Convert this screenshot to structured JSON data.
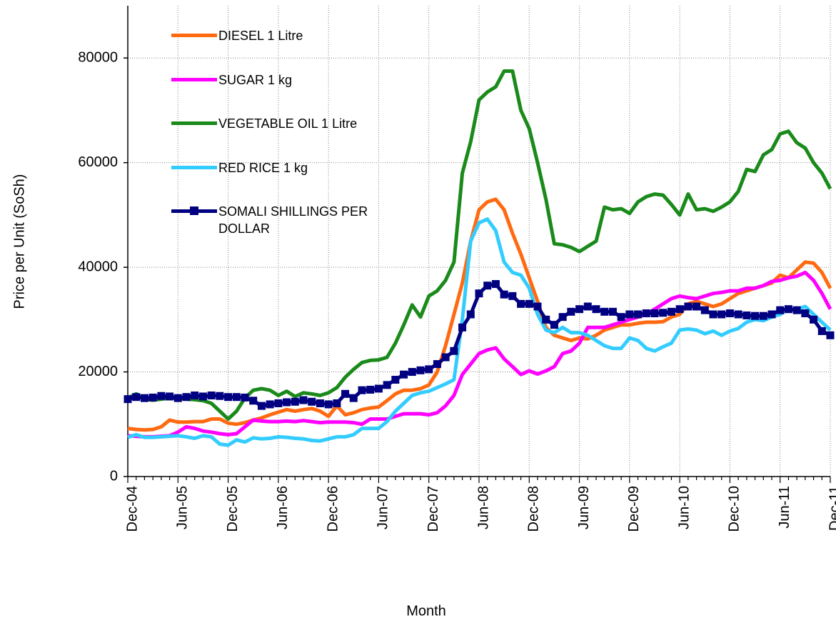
{
  "chart_data": {
    "type": "line",
    "y_label": "Price per Unit (SoSh)",
    "x_label": "Month",
    "categories": [
      "Dec-04",
      null,
      null,
      null,
      null,
      null,
      "Jun-05",
      null,
      null,
      null,
      null,
      null,
      "Dec-05",
      null,
      null,
      null,
      null,
      null,
      "Jun-06",
      null,
      null,
      null,
      null,
      null,
      "Dec-06",
      null,
      null,
      null,
      null,
      null,
      "Jun-07",
      null,
      null,
      null,
      null,
      null,
      "Dec-07",
      null,
      null,
      null,
      null,
      null,
      "Jun-08",
      null,
      null,
      null,
      null,
      null,
      "Dec-08",
      null,
      null,
      null,
      null,
      null,
      "Jun-09",
      null,
      null,
      null,
      null,
      null,
      "Dec-09",
      null,
      null,
      null,
      null,
      null,
      "Jun-10",
      null,
      null,
      null,
      null,
      null,
      "Dec-10",
      null,
      null,
      null,
      null,
      null,
      "Jun-11",
      null,
      null,
      null,
      null,
      null,
      "Dec-11"
    ],
    "ylim": [
      0,
      90000
    ],
    "yticks": [
      0,
      20000,
      40000,
      60000,
      80000
    ],
    "grid": true,
    "legend": "upper-left",
    "series": [
      {
        "name": "DIESEL 1 Litre",
        "color": "#ff6a10",
        "values": [
          9200,
          9000,
          8900,
          9000,
          9500,
          10800,
          10400,
          10400,
          10500,
          10500,
          11000,
          11000,
          10200,
          10000,
          10300,
          10800,
          11200,
          11800,
          12300,
          12800,
          12500,
          12800,
          13000,
          12500,
          11500,
          13500,
          11800,
          12200,
          12800,
          13100,
          13300,
          14500,
          15800,
          16500,
          16500,
          16800,
          17500,
          20000,
          25000,
          31000,
          37000,
          45000,
          51000,
          52500,
          53000,
          51000,
          46500,
          42500,
          38000,
          33500,
          28500,
          27000,
          26500,
          26000,
          26500,
          26300,
          27000,
          28000,
          28500,
          29000,
          29000,
          29300,
          29500,
          29500,
          29600,
          30500,
          31000,
          33000,
          33500,
          33000,
          32500,
          33000,
          34000,
          35000,
          35500,
          36000,
          36500,
          37000,
          38500,
          38000,
          39500,
          41000,
          40800,
          39000,
          36000
        ]
      },
      {
        "name": "SUGAR 1 kg",
        "color": "#ff00ff",
        "values": [
          7800,
          7700,
          7600,
          7600,
          7700,
          7800,
          8500,
          9500,
          9200,
          8700,
          8500,
          8200,
          8000,
          8200,
          9500,
          10800,
          10600,
          10500,
          10500,
          10600,
          10500,
          10700,
          10500,
          10300,
          10400,
          10400,
          10400,
          10300,
          10000,
          11000,
          11000,
          11000,
          11500,
          12000,
          12000,
          12000,
          11800,
          12200,
          13500,
          15500,
          19500,
          21500,
          23500,
          24200,
          24600,
          22500,
          21000,
          19500,
          20200,
          19600,
          20200,
          21000,
          23500,
          24000,
          25500,
          28500,
          28500,
          28500,
          29000,
          29500,
          30000,
          30500,
          31000,
          32000,
          33000,
          34000,
          34500,
          34200,
          34000,
          34500,
          35000,
          35200,
          35500,
          35500,
          36000,
          36000,
          36500,
          37300,
          37500,
          38000,
          38300,
          39000,
          37500,
          35000,
          32000
        ]
      },
      {
        "name": "VEGETABLE OIL 1 Litre",
        "color": "#1a8a1a",
        "values": [
          15000,
          15800,
          14800,
          14600,
          14800,
          15000,
          15000,
          14800,
          14700,
          14500,
          14000,
          12500,
          11000,
          12500,
          15000,
          16500,
          16800,
          16500,
          15500,
          16300,
          15300,
          16000,
          15800,
          15500,
          16000,
          17000,
          19000,
          20500,
          21800,
          22200,
          22300,
          22800,
          25500,
          29000,
          32800,
          30500,
          34500,
          35500,
          37500,
          41000,
          58000,
          64000,
          72000,
          73500,
          74500,
          77500,
          77500,
          70000,
          66500,
          60000,
          53000,
          44500,
          44300,
          43800,
          43000,
          44000,
          45000,
          51500,
          51000,
          51200,
          50300,
          52500,
          53500,
          54000,
          53800,
          52000,
          50000,
          54000,
          51000,
          51200,
          50700,
          51500,
          52500,
          54500,
          58700,
          58300,
          61500,
          62500,
          65500,
          66000,
          63800,
          62800,
          60000,
          58000,
          55000
        ]
      },
      {
        "name": "RED RICE 1 kg",
        "color": "#33ccff",
        "values": [
          7500,
          8000,
          7500,
          7500,
          7600,
          7700,
          7800,
          7600,
          7300,
          7800,
          7600,
          6200,
          6000,
          7000,
          6600,
          7400,
          7200,
          7300,
          7600,
          7500,
          7300,
          7200,
          6900,
          6800,
          7200,
          7600,
          7600,
          8000,
          9200,
          9200,
          9200,
          10500,
          12500,
          14000,
          15500,
          16000,
          16300,
          17000,
          17700,
          18500,
          30000,
          45000,
          48500,
          49200,
          47000,
          41000,
          39000,
          38500,
          36000,
          31000,
          28000,
          27500,
          28500,
          27500,
          27500,
          27000,
          26000,
          25000,
          24500,
          24500,
          26500,
          26000,
          24500,
          24000,
          24800,
          25500,
          28000,
          28200,
          28000,
          27300,
          27800,
          27000,
          27800,
          28300,
          29500,
          30000,
          29800,
          30500,
          31000,
          32000,
          32000,
          32500,
          31000,
          29500,
          28000
        ]
      },
      {
        "name": "SOMALI SHILLINGS PER DOLLAR",
        "color": "#000080",
        "marker": "square",
        "values": [
          14800,
          15200,
          15000,
          15100,
          15400,
          15300,
          15000,
          15200,
          15500,
          15300,
          15500,
          15400,
          15200,
          15200,
          15100,
          14500,
          13500,
          13800,
          14000,
          14200,
          14300,
          14600,
          14300,
          14000,
          13800,
          14000,
          15800,
          15000,
          16500,
          16600,
          16800,
          17500,
          18500,
          19500,
          20000,
          20300,
          20500,
          21500,
          22800,
          24000,
          28500,
          31000,
          35000,
          36500,
          36800,
          34800,
          34500,
          33000,
          33000,
          32500,
          30000,
          29000,
          30500,
          31500,
          32000,
          32500,
          32000,
          31500,
          31500,
          30500,
          31000,
          31000,
          31200,
          31200,
          31300,
          31500,
          32000,
          32500,
          32500,
          31800,
          31000,
          31000,
          31200,
          31000,
          30800,
          30700,
          30700,
          31000,
          31800,
          32000,
          31800,
          31200,
          30000,
          27800,
          27000
        ]
      }
    ]
  }
}
